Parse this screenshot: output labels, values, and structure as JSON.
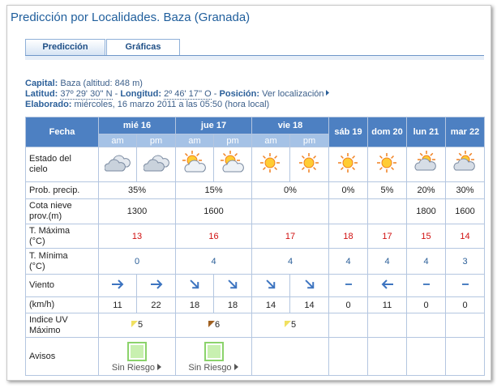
{
  "header": {
    "title": "Predicción por Localidades. Baza (Granada)"
  },
  "tabs": [
    "Predicción",
    "Gráficas"
  ],
  "info": {
    "capital_label": "Capital:",
    "capital": "Baza (altitud: 848 m)",
    "latitude_label": "Latitud:",
    "latitude": "37º 29' 30'' N",
    "sep1": "-",
    "longitude_label": "Longitud:",
    "longitude": "2º 46' 17'' O",
    "sep2": "-",
    "position_label": "Posición:",
    "position_link": "Ver localización",
    "elaborated_label": "Elaborado:",
    "elaborated": "miércoles, 16 marzo 2011 a las 05:50 (hora local)"
  },
  "table": {
    "header": "Fecha",
    "days": [
      "mié 16",
      "jue 17",
      "vie 18",
      "sáb 19",
      "dom 20",
      "lun 21",
      "mar 22"
    ],
    "subheaders": [
      "am",
      "pm",
      "am",
      "pm",
      "am",
      "pm"
    ],
    "rows": [
      {
        "label": "Estado del cielo"
      },
      {
        "label": "Prob. precip.",
        "cells": [
          "35%",
          "15%",
          "0%",
          "0%",
          "5%",
          "20%",
          "30%"
        ]
      },
      {
        "label": "Cota nieve prov.(m)",
        "cells": [
          1300,
          1600,
          null,
          null,
          null,
          1800,
          1600
        ]
      },
      {
        "label": "T. Máxima (°C)",
        "cells": [
          13,
          16,
          17,
          18,
          17,
          15,
          14
        ]
      },
      {
        "label": "T. Mínima (°C)",
        "cells": [
          0,
          4,
          4,
          4,
          4,
          4,
          3
        ]
      },
      {
        "label": "Viento"
      },
      {
        "label": "(km/h)",
        "cells": [
          11,
          22,
          18,
          18,
          14,
          14,
          0,
          11,
          0,
          0
        ]
      },
      {
        "label": "Indice UV Máximo",
        "cells": [
          5,
          6,
          5,
          null,
          null,
          null,
          null
        ]
      },
      {
        "label": "Avisos",
        "cells": [
          "Sin Riesgo",
          "Sin Riesgo",
          null,
          null,
          null,
          null,
          null
        ]
      }
    ]
  }
}
